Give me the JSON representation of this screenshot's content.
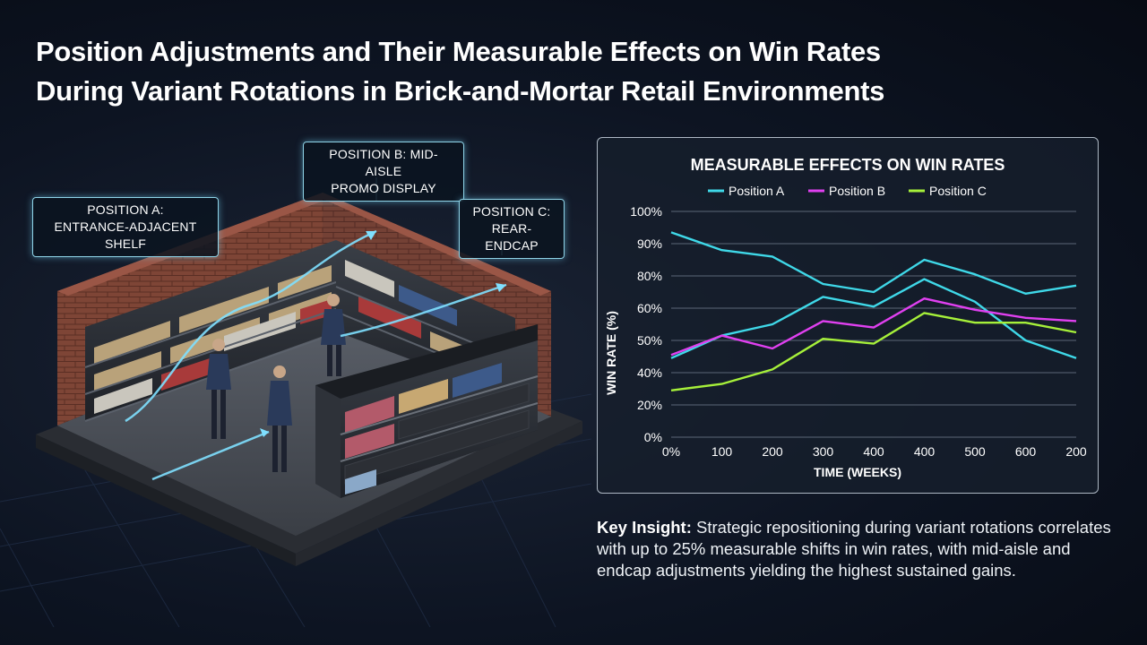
{
  "header": {
    "title_line1": "Position Adjustments and Their Measurable Effects on Win Rates",
    "title_line2": "During Variant Rotations in Brick-and-Mortar Retail Environments"
  },
  "scene": {
    "labels": {
      "pos_a_line1": "POSITION A:",
      "pos_a_line2": "ENTRANCE-ADJACENT SHELF",
      "pos_b_line1": "POSITION B: MID-AISLE",
      "pos_b_line2": "PROMO DISPLAY",
      "pos_c_line1": "POSITION C:",
      "pos_c_line2": "REAR-ENDCAP"
    },
    "colors": {
      "floor": "#4a4f57",
      "brick": "#8a4a3a",
      "shelf": "#2b2f36",
      "arrow": "#7fe0ff"
    }
  },
  "chart_data": {
    "type": "line",
    "title": "MEASURABLE EFFECTS ON WIN RATES",
    "xlabel": "TIME (WEEKS)",
    "ylabel": "WIN RATE (%)",
    "x_tick_labels": [
      "0%",
      "100",
      "200",
      "300",
      "400",
      "400",
      "500",
      "600",
      "200"
    ],
    "y_tick_labels": [
      "100%",
      "90%",
      "80%",
      "60%",
      "50%",
      "40%",
      "20%",
      "0%"
    ],
    "ylim": [
      0,
      7
    ],
    "grid": true,
    "legend_position": "top-center",
    "series": [
      {
        "name": "Position A",
        "color": "#3fd8e8",
        "values": [
          6.35,
          5.8,
          5.6,
          4.75,
          4.5,
          5.5,
          5.05,
          4.45,
          4.7
        ]
      },
      {
        "name": "Position B",
        "color": "#e040f0",
        "values": [
          2.55,
          3.15,
          2.75,
          3.6,
          3.4,
          4.3,
          3.95,
          3.7,
          3.6
        ]
      },
      {
        "name": "Position C",
        "color": "#a6f03a",
        "values": [
          1.45,
          1.65,
          2.1,
          3.05,
          2.9,
          3.85,
          3.55,
          3.55,
          3.25
        ]
      }
    ],
    "series_extra": {
      "Position A (second line)": [
        2.45,
        3.15,
        3.5,
        4.35,
        4.05,
        4.9,
        4.2,
        3.0,
        2.45
      ]
    }
  },
  "insight": {
    "label": "Key Insight:",
    "text": " Strategic repositioning during variant rotations correlates with up to 25% measurable shifts in win rates, with mid-aisle and endcap adjustments yielding the highest sustained gains."
  }
}
